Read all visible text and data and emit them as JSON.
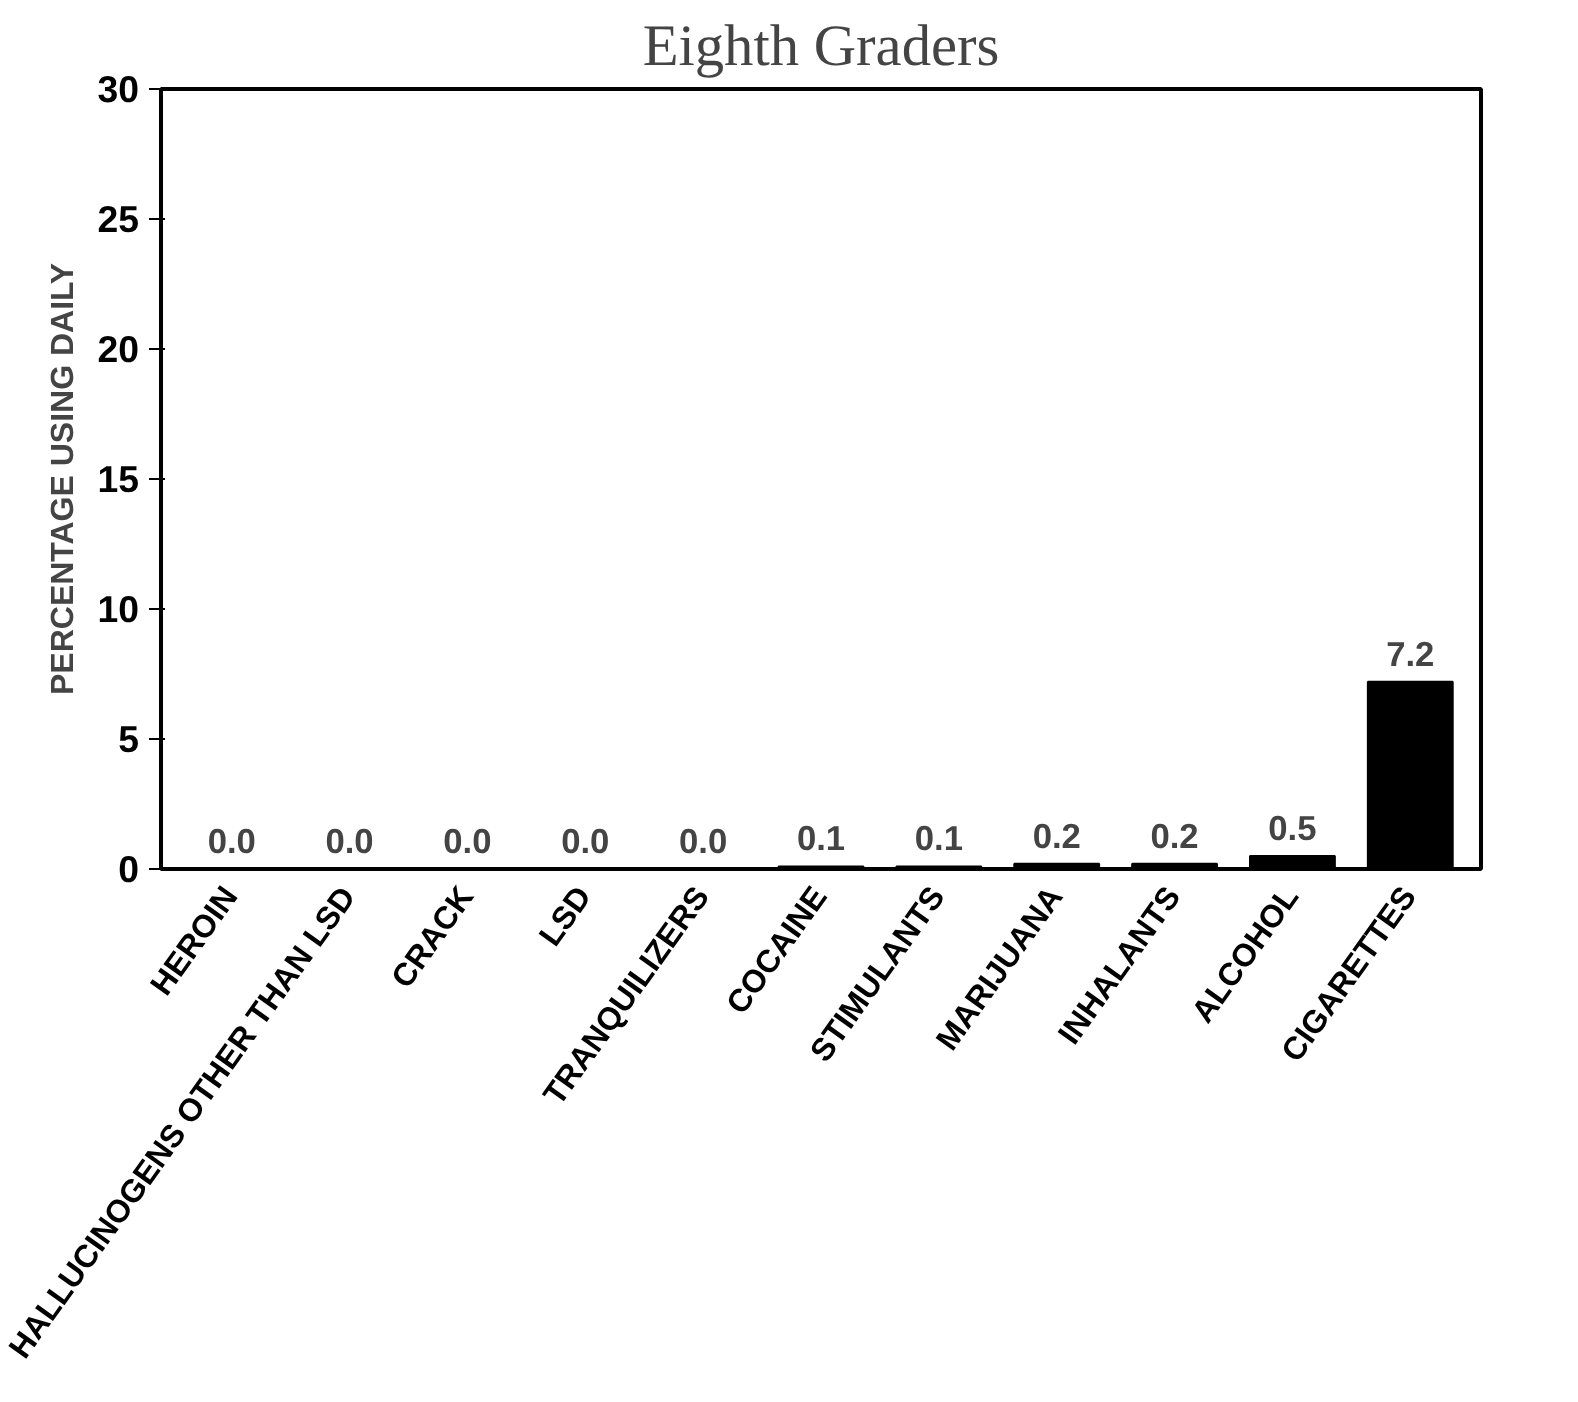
{
  "chart_data": {
    "type": "bar",
    "title": "Eighth Graders",
    "ylabel": "PERCENTAGE USING DAILY",
    "categories": [
      "HEROIN",
      "HALLUCINOGENS OTHER THAN LSD",
      "CRACK",
      "LSD",
      "TRANQUILIZERS",
      "COCAINE",
      "STIMULANTS",
      "MARIJUANA",
      "INHALANTS",
      "ALCOHOL",
      "CIGARETTES"
    ],
    "values": [
      0.0,
      0.0,
      0.0,
      0.0,
      0.0,
      0.1,
      0.1,
      0.2,
      0.2,
      0.5,
      7.2
    ],
    "value_labels": [
      "0.0",
      "0.0",
      "0.0",
      "0.0",
      "0.0",
      "0.1",
      "0.1",
      "0.2",
      "0.2",
      "0.5",
      "7.2"
    ],
    "color": "#000000",
    "ylim": [
      0,
      30
    ],
    "yticks": [
      0,
      5,
      10,
      15,
      20,
      25,
      30
    ],
    "grid": false
  }
}
